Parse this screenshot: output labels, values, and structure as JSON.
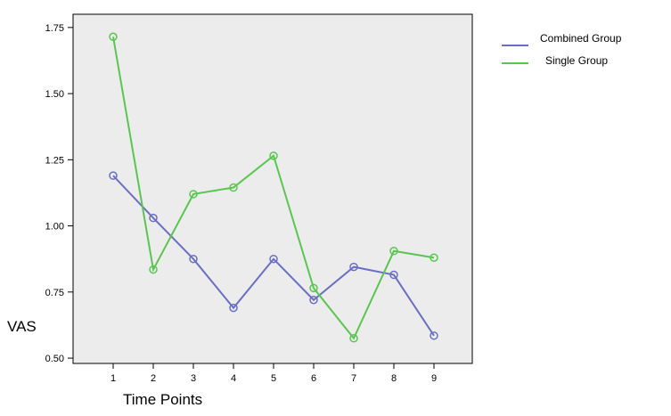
{
  "chart_data": {
    "type": "line",
    "xlabel": "Time Points",
    "ylabel": "VAS",
    "x": [
      1,
      2,
      3,
      4,
      5,
      6,
      7,
      8,
      9
    ],
    "xlim": [
      0,
      10
    ],
    "ylim": [
      0.48,
      1.8
    ],
    "yticks": [
      "0.50",
      "0.75",
      "1.00",
      "1.25",
      "1.50",
      "1.75"
    ],
    "ytick_values": [
      0.5,
      0.75,
      1.0,
      1.25,
      1.5,
      1.75
    ],
    "xticks": [
      "1",
      "2",
      "3",
      "4",
      "5",
      "6",
      "7",
      "8",
      "9"
    ],
    "grid": false,
    "legend_position": "top-right outside",
    "plot_background": "#ececec",
    "marker": "open-circle",
    "series": [
      {
        "name": "Combined Group",
        "color": "#6a6fc4",
        "values": [
          1.19,
          1.03,
          0.875,
          0.69,
          0.875,
          0.72,
          0.845,
          0.815,
          0.585
        ]
      },
      {
        "name": "Single Group",
        "color": "#59c74f",
        "values": [
          1.715,
          0.835,
          1.12,
          1.145,
          1.265,
          0.765,
          0.575,
          0.905,
          0.88
        ]
      }
    ]
  }
}
